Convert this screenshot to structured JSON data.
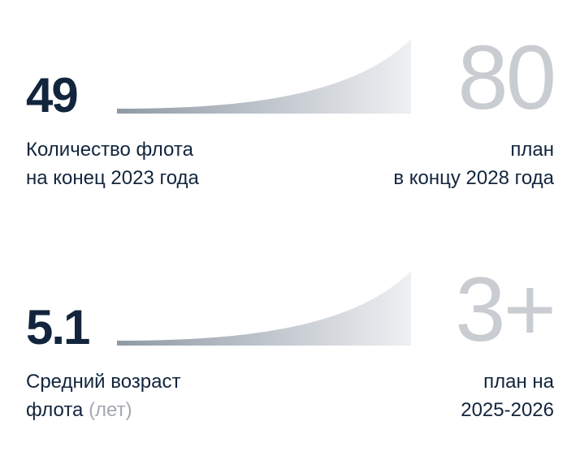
{
  "stats": [
    {
      "current_value": "49",
      "target_value": "80",
      "label_lines": [
        "Количество флота",
        "на конец 2023 года"
      ],
      "target_label_lines": [
        "план",
        "в концу 2028 года"
      ]
    },
    {
      "current_value": "5.1",
      "target_value": "3+",
      "label_line1": "Средний возраст",
      "label_line2_main": "флота",
      "label_line2_muted": "(лет)",
      "target_label_lines": [
        "план на",
        "2025-2026"
      ]
    }
  ],
  "colors": {
    "primary_text": "#12253d",
    "target_number": "#c9cdd2",
    "muted_text": "#a3a9b0",
    "curve_start": "#8f99a5",
    "curve_end": "#eef0f2"
  }
}
